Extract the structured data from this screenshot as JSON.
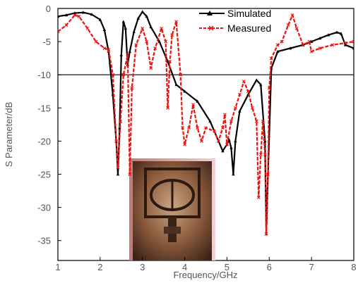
{
  "chart_data": {
    "type": "line",
    "title": "",
    "xlabel": "Frequency/GHz",
    "ylabel": "S Parameter/dB",
    "xlim": [
      1,
      8
    ],
    "ylim": [
      -38,
      0
    ],
    "x_ticks": [
      1,
      2,
      3,
      4,
      5,
      6,
      7,
      8
    ],
    "y_ticks": [
      0,
      -5,
      -10,
      -15,
      -20,
      -25,
      -30,
      -35
    ],
    "reference_line": -10,
    "legend_position": "top-right",
    "series": [
      {
        "name": "Simulated",
        "color": "#000000",
        "marker": "triangle",
        "points": [
          [
            1.0,
            -1.2
          ],
          [
            1.2,
            -1.0
          ],
          [
            1.4,
            -0.7
          ],
          [
            1.6,
            -0.6
          ],
          [
            1.8,
            -0.9
          ],
          [
            2.0,
            -1.7
          ],
          [
            2.1,
            -3.2
          ],
          [
            2.2,
            -6.5
          ],
          [
            2.3,
            -13.0
          ],
          [
            2.38,
            -20.0
          ],
          [
            2.42,
            -25.0
          ],
          [
            2.46,
            -18.0
          ],
          [
            2.5,
            -7.0
          ],
          [
            2.55,
            -2.0
          ],
          [
            2.6,
            -3.0
          ],
          [
            2.65,
            -8.5
          ],
          [
            2.7,
            -6.5
          ],
          [
            2.8,
            -3.5
          ],
          [
            2.9,
            -1.5
          ],
          [
            3.0,
            -0.5
          ],
          [
            3.1,
            -1.2
          ],
          [
            3.2,
            -2.8
          ],
          [
            3.4,
            -5.0
          ],
          [
            3.6,
            -8.0
          ],
          [
            3.8,
            -11.5
          ],
          [
            4.0,
            -12.5
          ],
          [
            4.3,
            -14.0
          ],
          [
            4.6,
            -17.0
          ],
          [
            4.8,
            -20.0
          ],
          [
            4.9,
            -21.5
          ],
          [
            5.0,
            -20.5
          ],
          [
            5.05,
            -19.8
          ],
          [
            5.1,
            -21.0
          ],
          [
            5.15,
            -25.0
          ],
          [
            5.2,
            -20.0
          ],
          [
            5.3,
            -15.5
          ],
          [
            5.5,
            -13.0
          ],
          [
            5.7,
            -10.8
          ],
          [
            5.8,
            -11.5
          ],
          [
            5.9,
            -20.0
          ],
          [
            5.93,
            -34.0
          ],
          [
            5.97,
            -25.0
          ],
          [
            6.05,
            -9.0
          ],
          [
            6.2,
            -6.5
          ],
          [
            6.5,
            -6.0
          ],
          [
            6.8,
            -5.5
          ],
          [
            7.0,
            -5.0
          ],
          [
            7.2,
            -4.5
          ],
          [
            7.4,
            -4.0
          ],
          [
            7.6,
            -3.6
          ],
          [
            7.7,
            -3.8
          ],
          [
            7.8,
            -5.5
          ],
          [
            8.0,
            -6.0
          ]
        ]
      },
      {
        "name": "Measured",
        "color": "#ee1111",
        "marker": "cross",
        "points": [
          [
            1.0,
            -3.5
          ],
          [
            1.2,
            -2.5
          ],
          [
            1.4,
            -1.0
          ],
          [
            1.5,
            -1.2
          ],
          [
            1.7,
            -3.0
          ],
          [
            1.9,
            -5.0
          ],
          [
            2.1,
            -6.0
          ],
          [
            2.2,
            -6.2
          ],
          [
            2.3,
            -10.0
          ],
          [
            2.38,
            -20.0
          ],
          [
            2.42,
            -24.0
          ],
          [
            2.48,
            -17.0
          ],
          [
            2.55,
            -10.0
          ],
          [
            2.65,
            -7.0
          ],
          [
            2.7,
            -25.0
          ],
          [
            2.75,
            -12.0
          ],
          [
            2.85,
            -5.5
          ],
          [
            3.0,
            -3.0
          ],
          [
            3.1,
            -5.0
          ],
          [
            3.2,
            -9.0
          ],
          [
            3.3,
            -6.0
          ],
          [
            3.45,
            -3.0
          ],
          [
            3.55,
            -5.0
          ],
          [
            3.6,
            -15.0
          ],
          [
            3.65,
            -8.0
          ],
          [
            3.7,
            -4.0
          ],
          [
            3.8,
            -2.0
          ],
          [
            3.9,
            -10.0
          ],
          [
            3.95,
            -18.0
          ],
          [
            4.0,
            -20.5
          ],
          [
            4.1,
            -18.0
          ],
          [
            4.2,
            -14.5
          ],
          [
            4.3,
            -18.0
          ],
          [
            4.4,
            -20.0
          ],
          [
            4.5,
            -18.0
          ],
          [
            4.7,
            -18.5
          ],
          [
            4.8,
            -20.0
          ],
          [
            4.9,
            -18.0
          ],
          [
            4.95,
            -16.0
          ],
          [
            5.0,
            -20.5
          ],
          [
            5.1,
            -17.0
          ],
          [
            5.2,
            -15.0
          ],
          [
            5.3,
            -13.0
          ],
          [
            5.4,
            -11.0
          ],
          [
            5.5,
            -12.5
          ],
          [
            5.6,
            -15.0
          ],
          [
            5.7,
            -17.0
          ],
          [
            5.75,
            -28.5
          ],
          [
            5.8,
            -22.0
          ],
          [
            5.85,
            -17.0
          ],
          [
            5.9,
            -22.0
          ],
          [
            5.93,
            -34.0
          ],
          [
            5.97,
            -25.0
          ],
          [
            6.0,
            -12.0
          ],
          [
            6.05,
            -7.5
          ],
          [
            6.2,
            -5.5
          ],
          [
            6.3,
            -5.0
          ],
          [
            6.45,
            -2.5
          ],
          [
            6.55,
            -1.0
          ],
          [
            6.65,
            -3.0
          ],
          [
            6.8,
            -5.5
          ],
          [
            6.95,
            -5.0
          ],
          [
            7.0,
            -6.5
          ],
          [
            7.2,
            -6.0
          ],
          [
            7.5,
            -5.5
          ],
          [
            7.8,
            -5.2
          ],
          [
            8.0,
            -5.0
          ]
        ]
      }
    ]
  }
}
